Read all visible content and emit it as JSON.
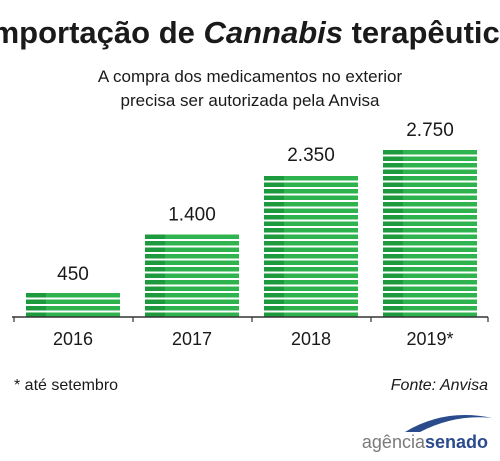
{
  "title_parts": {
    "before": "Importação de ",
    "italic": "Cannabis",
    "after": " terapêutica"
  },
  "subtitle_line1": "A compra dos medicamentos no exterior",
  "subtitle_line2": "precisa ser autorizada pela Anvisa",
  "footnote": "* até setembro",
  "source": "Fonte: Anvisa",
  "logo": {
    "part1": "agência",
    "part2": "senado"
  },
  "colors": {
    "bar_light": "#2fb34f",
    "bar_dark": "#1e9a3e",
    "axis": "#333333",
    "logo_gray": "#7a7a7a",
    "logo_blue": "#2b4c8c"
  },
  "chart_data": {
    "type": "bar",
    "title": "Importação de Cannabis terapêutica",
    "categories": [
      "2016",
      "2017",
      "2018",
      "2019*"
    ],
    "values": [
      450,
      1400,
      2350,
      2750
    ],
    "value_labels": [
      "450",
      "1.400",
      "2.350",
      "2.750"
    ],
    "ylim": [
      0,
      2750
    ],
    "grid": false,
    "legend": "none"
  }
}
